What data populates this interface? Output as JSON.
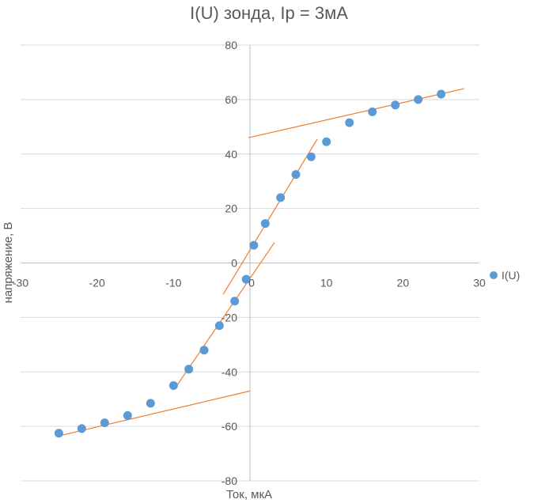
{
  "chart_data": {
    "type": "scatter",
    "title": "I(U) зонда, Ip = 3мА",
    "xlabel": "Ток, мкА",
    "ylabel": "напряжение, В",
    "xlim": [
      -30,
      30
    ],
    "ylim": [
      -80,
      80
    ],
    "x_ticks": [
      "-30",
      "-20",
      "-10",
      "0",
      "10",
      "20",
      "30"
    ],
    "y_ticks": [
      "80",
      "60",
      "40",
      "20",
      "0",
      "-20",
      "-40",
      "-60",
      "-80"
    ],
    "grid": "horizontal",
    "legend_position": "right",
    "series": [
      {
        "name": "I(U)",
        "color": "#5B9BD5",
        "points": [
          {
            "x": -25,
            "y": -62.5
          },
          {
            "x": -22,
            "y": -60.8
          },
          {
            "x": -19,
            "y": -58.7
          },
          {
            "x": -16,
            "y": -56.0
          },
          {
            "x": -13,
            "y": -51.5
          },
          {
            "x": -10,
            "y": -45.0
          },
          {
            "x": -8,
            "y": -39.0
          },
          {
            "x": -6,
            "y": -32.0
          },
          {
            "x": -4,
            "y": -23.0
          },
          {
            "x": -2,
            "y": -14.0
          },
          {
            "x": -0.5,
            "y": -6.0
          },
          {
            "x": 0.5,
            "y": 6.5
          },
          {
            "x": 2,
            "y": 14.5
          },
          {
            "x": 4,
            "y": 24.0
          },
          {
            "x": 6,
            "y": 32.5
          },
          {
            "x": 8,
            "y": 39.0
          },
          {
            "x": 10,
            "y": 44.5
          },
          {
            "x": 13,
            "y": 51.5
          },
          {
            "x": 16,
            "y": 55.5
          },
          {
            "x": 19,
            "y": 58.0
          },
          {
            "x": 22,
            "y": 60.0
          },
          {
            "x": 25,
            "y": 62.0
          }
        ]
      }
    ],
    "trend_lines": [
      {
        "color": "#ED7D31",
        "x1": -0.2,
        "y1": 46.0,
        "x2": 28.0,
        "y2": 64.0
      },
      {
        "color": "#ED7D31",
        "x1": -3.5,
        "y1": -11.5,
        "x2": 8.8,
        "y2": 45.5
      },
      {
        "color": "#ED7D31",
        "x1": -9.8,
        "y1": -46.0,
        "x2": 3.2,
        "y2": 7.5
      },
      {
        "color": "#ED7D31",
        "x1": -25.0,
        "y1": -63.5,
        "x2": 0.0,
        "y2": -47.0
      }
    ]
  }
}
